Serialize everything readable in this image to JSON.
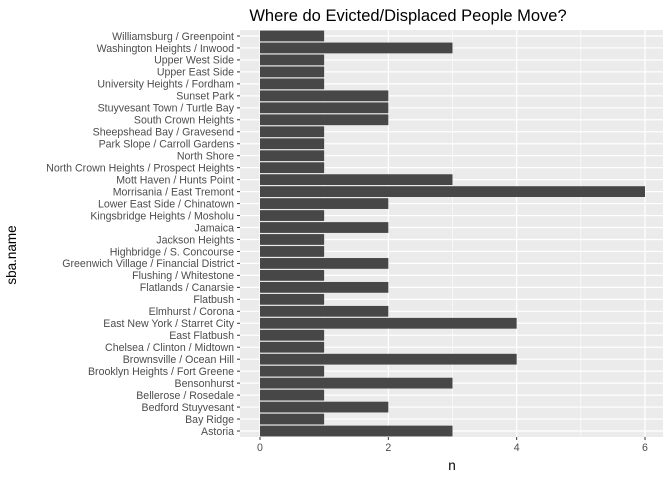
{
  "chart_data": {
    "type": "bar",
    "orientation": "horizontal",
    "title": "Where do Evicted/Displaced People Move?",
    "xlabel": "n",
    "ylabel": "sba.name",
    "xlim": [
      0,
      6.2
    ],
    "x_ticks": [
      0,
      2,
      4,
      6
    ],
    "grid": true,
    "colors": {
      "panel": "#ebebeb",
      "grid": "#ffffff",
      "bar": "#474747",
      "tick_text": "#4d4d4d"
    },
    "categories": [
      "Williamsburg / Greenpoint",
      "Washington Heights / Inwood",
      "Upper West Side",
      "Upper East Side",
      "University Heights / Fordham",
      "Sunset Park",
      "Stuyvesant Town / Turtle Bay",
      "South Crown Heights",
      "Sheepshead Bay / Gravesend",
      "Park Slope / Carroll Gardens",
      "North Shore",
      "North Crown Heights / Prospect Heights",
      "Mott Haven / Hunts Point",
      "Morrisania / East Tremont",
      "Lower East Side / Chinatown",
      "Kingsbridge Heights / Mosholu",
      "Jamaica",
      "Jackson Heights",
      "Highbridge / S. Concourse",
      "Greenwich Village / Financial District",
      "Flushing / Whitestone",
      "Flatlands / Canarsie",
      "Flatbush",
      "Elmhurst / Corona",
      "East New York / Starret City",
      "East Flatbush",
      "Chelsea / Clinton / Midtown",
      "Brownsville / Ocean Hill",
      "Brooklyn Heights / Fort Greene",
      "Bensonhurst",
      "Bellerose / Rosedale",
      "Bedford Stuyvesant",
      "Bay Ridge",
      "Astoria"
    ],
    "values": [
      1,
      3,
      1,
      1,
      1,
      2,
      2,
      2,
      1,
      1,
      1,
      1,
      3,
      6,
      2,
      1,
      2,
      1,
      1,
      2,
      1,
      2,
      1,
      2,
      4,
      1,
      1,
      4,
      1,
      3,
      1,
      2,
      1,
      3
    ]
  }
}
